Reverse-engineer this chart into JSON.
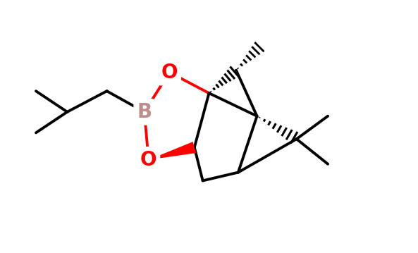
{
  "bg_color": "#ffffff",
  "bond_color": "#000000",
  "B_color": "#bc8f8f",
  "O_color": "#ff0000",
  "line_width": 2.8,
  "font_size_atom": 20,
  "fig_width": 5.93,
  "fig_height": 3.59,
  "dpi": 100,
  "xlim": [
    0,
    10
  ],
  "ylim": [
    0,
    6
  ]
}
